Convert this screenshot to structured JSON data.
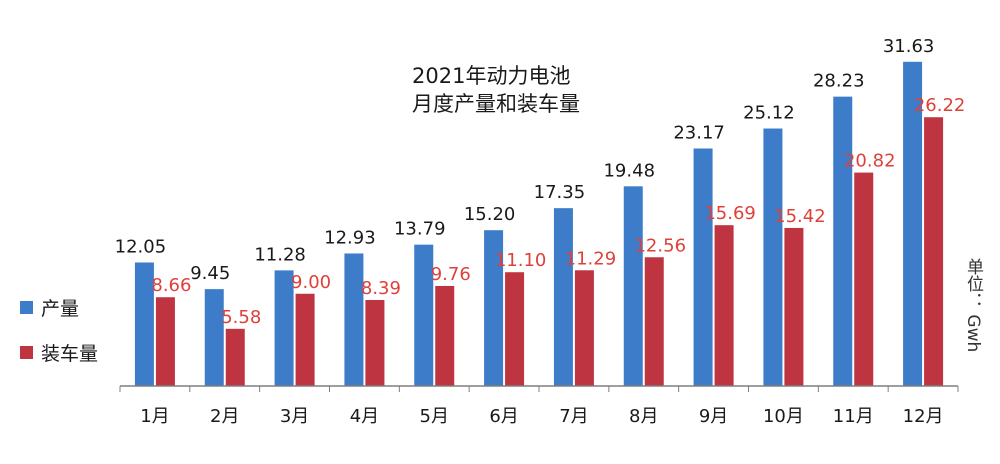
{
  "chart_data": {
    "type": "bar",
    "title_lines": [
      "2021年动力电池",
      "月度产量和装车量"
    ],
    "categories": [
      "1月",
      "2月",
      "3月",
      "4月",
      "5月",
      "6月",
      "7月",
      "8月",
      "9月",
      "10月",
      "11月",
      "12月"
    ],
    "series": [
      {
        "name": "产量",
        "color": "#3d7cc9",
        "label_color": "#1a1a1a",
        "values": [
          12.05,
          9.45,
          11.28,
          12.93,
          13.79,
          15.2,
          17.35,
          19.48,
          23.17,
          25.12,
          28.23,
          31.63
        ],
        "labels": [
          "12.05",
          "9.45",
          "11.28",
          "12.93",
          "13.79",
          "15.20",
          "17.35",
          "19.48",
          "23.17",
          "25.12",
          "28.23",
          "31.63"
        ]
      },
      {
        "name": "装车量",
        "color": "#be3440",
        "label_color": "#e0403a",
        "values": [
          8.66,
          5.58,
          9.0,
          8.39,
          9.76,
          11.1,
          11.29,
          12.56,
          15.69,
          15.42,
          20.82,
          26.22
        ],
        "labels": [
          "8.66",
          "5.58",
          "9.00",
          "8.39",
          "9.76",
          "11.10",
          "11.29",
          "12.56",
          "15.69",
          "15.42",
          "20.82",
          "26.22"
        ]
      }
    ],
    "unit": "单位： Gwh",
    "ylim": [
      0,
      32
    ],
    "grid": false,
    "legend_position": "left"
  }
}
